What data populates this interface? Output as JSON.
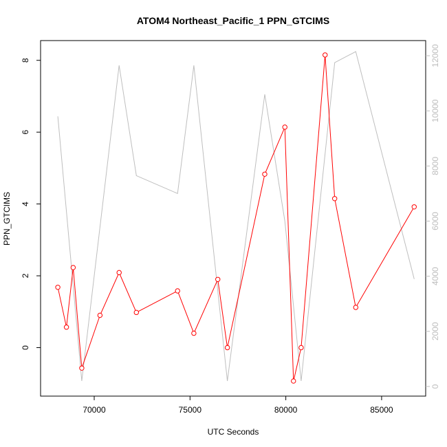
{
  "chart_data": {
    "type": "line",
    "title": "ATOM4 Northeast_Pacific_1 PPN_GTCIMS",
    "xlabel": "UTC Seconds",
    "ylabel": "PPN_GTCIMS",
    "xlim": [
      67200,
      87300
    ],
    "ylim_left": [
      -1.35,
      8.55
    ],
    "ylim_right": [
      -350,
      12550
    ],
    "x_ticks": [
      "70000",
      "75000",
      "80000",
      "85000"
    ],
    "y_ticks_left": [
      "0",
      "2",
      "4",
      "6",
      "8"
    ],
    "y_ticks_right": [
      "0",
      "2000",
      "4000",
      "6000",
      "8000",
      "10000",
      "12000"
    ],
    "colors": {
      "primary": "#ff0000",
      "secondary": "#bebebe",
      "axes": "#000000"
    },
    "series": [
      {
        "axis": "left",
        "style": "line+circle",
        "x": [
          68100,
          68550,
          68900,
          69350,
          70300,
          71300,
          72200,
          74350,
          75200,
          76450,
          76950,
          78900,
          79950,
          80400,
          80800,
          82050,
          82550,
          83650,
          86700
        ],
        "y": [
          1.68,
          0.57,
          2.23,
          -0.57,
          0.9,
          2.09,
          0.98,
          1.58,
          0.4,
          1.9,
          0.0,
          4.83,
          6.14,
          -0.93,
          0.0,
          8.15,
          4.15,
          1.12,
          3.92
        ]
      },
      {
        "axis": "right",
        "style": "line",
        "x": [
          68100,
          69350,
          71300,
          72200,
          74350,
          75200,
          76950,
          78900,
          79950,
          80800,
          82550,
          83650,
          86700
        ],
        "y": [
          9800,
          200,
          11650,
          7650,
          7000,
          11650,
          200,
          10600,
          6000,
          200,
          11750,
          12150,
          3900
        ]
      }
    ]
  }
}
